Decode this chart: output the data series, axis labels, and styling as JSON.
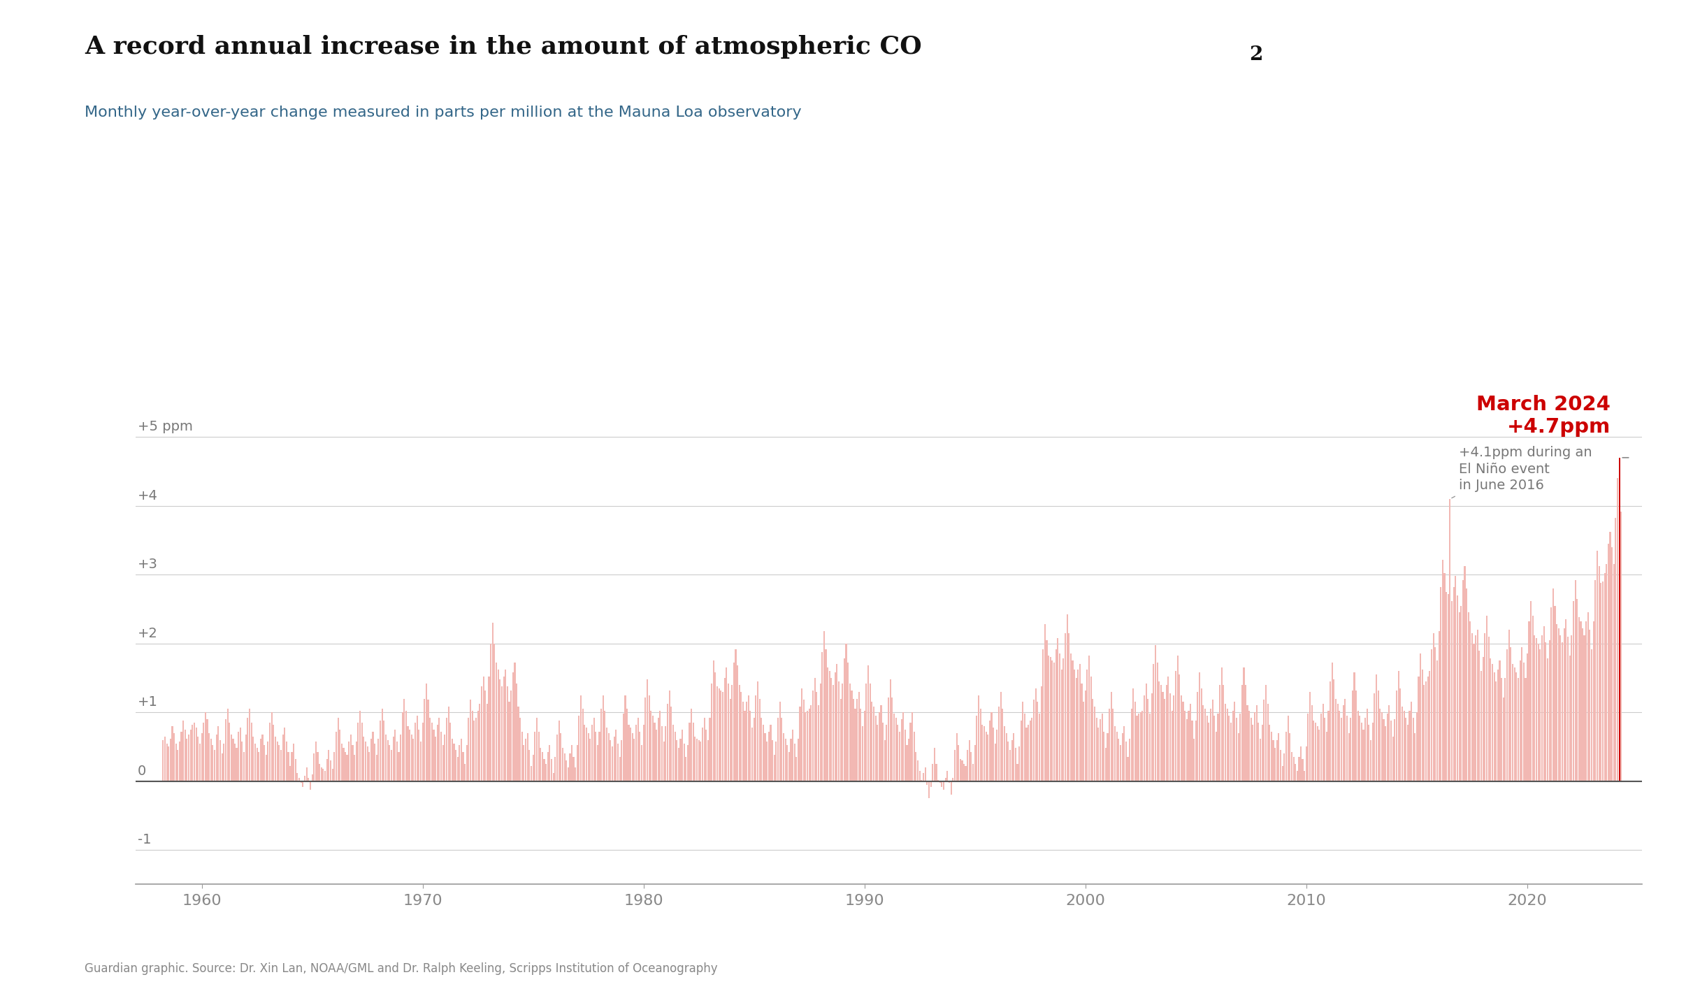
{
  "title_part1": "A record annual increase in the amount of atmospheric CO",
  "title_sub": "2",
  "subtitle": "Monthly year-over-year change measured in parts per million at the Mauna Loa observatory",
  "source": "Guardian graphic. Source: Dr. Xin Lan, NOAA/GML and Dr. Ralph Keeling, Scripps Institution of Oceanography",
  "bar_color": "#f2b8b3",
  "highlight_color": "#cc0000",
  "annotation_color": "#777777",
  "connector_color": "#999999",
  "title_color": "#111111",
  "subtitle_color": "#336688",
  "background_color": "#ffffff",
  "ylim": [
    -1.5,
    5.8
  ],
  "yticks": [
    -1,
    0,
    1,
    2,
    3,
    4,
    5
  ],
  "ytick_labels": [
    "-1",
    "0",
    "+1",
    "+2",
    "+3",
    "+4",
    "+5 ppm"
  ],
  "march2024_value": 4.7,
  "june2016_value": 4.1,
  "data": [
    1958.25,
    0.6,
    1958.33,
    0.65,
    1958.42,
    0.55,
    1958.5,
    0.5,
    1958.58,
    0.62,
    1958.67,
    0.8,
    1958.75,
    0.7,
    1958.83,
    0.55,
    1958.92,
    0.45,
    1959.0,
    0.58,
    1959.08,
    0.72,
    1959.17,
    0.88,
    1959.25,
    0.75,
    1959.33,
    0.62,
    1959.42,
    0.68,
    1959.5,
    0.75,
    1959.58,
    0.82,
    1959.67,
    0.85,
    1959.75,
    0.78,
    1959.83,
    0.65,
    1959.92,
    0.55,
    1960.0,
    0.7,
    1960.08,
    0.85,
    1960.17,
    1.0,
    1960.25,
    0.9,
    1960.33,
    0.7,
    1960.42,
    0.62,
    1960.5,
    0.52,
    1960.58,
    0.45,
    1960.67,
    0.68,
    1960.75,
    0.8,
    1960.83,
    0.6,
    1960.92,
    0.4,
    1961.0,
    0.55,
    1961.08,
    0.9,
    1961.17,
    1.05,
    1961.25,
    0.85,
    1961.33,
    0.68,
    1961.42,
    0.62,
    1961.5,
    0.55,
    1961.58,
    0.48,
    1961.67,
    0.72,
    1961.75,
    0.78,
    1961.83,
    0.58,
    1961.92,
    0.42,
    1962.0,
    0.68,
    1962.08,
    0.92,
    1962.17,
    1.05,
    1962.25,
    0.85,
    1962.33,
    0.65,
    1962.42,
    0.55,
    1962.5,
    0.48,
    1962.58,
    0.42,
    1962.67,
    0.62,
    1962.75,
    0.68,
    1962.83,
    0.52,
    1962.92,
    0.38,
    1963.0,
    0.58,
    1963.08,
    0.85,
    1963.17,
    1.0,
    1963.25,
    0.82,
    1963.33,
    0.65,
    1963.42,
    0.58,
    1963.5,
    0.52,
    1963.58,
    0.45,
    1963.67,
    0.68,
    1963.75,
    0.78,
    1963.83,
    0.58,
    1963.92,
    0.42,
    1964.0,
    0.22,
    1964.08,
    0.42,
    1964.17,
    0.55,
    1964.25,
    0.32,
    1964.33,
    0.12,
    1964.42,
    0.05,
    1964.5,
    -0.02,
    1964.58,
    -0.08,
    1964.67,
    0.08,
    1964.75,
    0.2,
    1964.83,
    0.05,
    1964.92,
    -0.12,
    1965.0,
    0.1,
    1965.08,
    0.4,
    1965.17,
    0.58,
    1965.25,
    0.42,
    1965.33,
    0.25,
    1965.42,
    0.2,
    1965.5,
    0.18,
    1965.58,
    0.15,
    1965.67,
    0.32,
    1965.75,
    0.45,
    1965.83,
    0.3,
    1965.92,
    0.18,
    1966.0,
    0.42,
    1966.08,
    0.72,
    1966.17,
    0.92,
    1966.25,
    0.75,
    1966.33,
    0.55,
    1966.42,
    0.48,
    1966.5,
    0.42,
    1966.58,
    0.38,
    1966.67,
    0.58,
    1966.75,
    0.68,
    1966.83,
    0.52,
    1966.92,
    0.38,
    1967.0,
    0.58,
    1967.08,
    0.85,
    1967.17,
    1.02,
    1967.25,
    0.85,
    1967.33,
    0.65,
    1967.42,
    0.58,
    1967.5,
    0.5,
    1967.58,
    0.42,
    1967.67,
    0.62,
    1967.75,
    0.72,
    1967.83,
    0.55,
    1967.92,
    0.38,
    1968.0,
    0.62,
    1968.08,
    0.88,
    1968.17,
    1.05,
    1968.25,
    0.88,
    1968.33,
    0.68,
    1968.42,
    0.6,
    1968.5,
    0.52,
    1968.58,
    0.45,
    1968.67,
    0.65,
    1968.75,
    0.75,
    1968.83,
    0.58,
    1968.92,
    0.42,
    1969.0,
    0.68,
    1969.08,
    1.0,
    1969.17,
    1.2,
    1969.25,
    1.02,
    1969.33,
    0.8,
    1969.42,
    0.75,
    1969.5,
    0.68,
    1969.58,
    0.62,
    1969.67,
    0.85,
    1969.75,
    0.95,
    1969.83,
    0.75,
    1969.92,
    0.58,
    1970.0,
    0.85,
    1970.08,
    1.2,
    1970.17,
    1.42,
    1970.25,
    1.18,
    1970.33,
    0.92,
    1970.42,
    0.85,
    1970.5,
    0.75,
    1970.58,
    0.65,
    1970.67,
    0.82,
    1970.75,
    0.92,
    1970.83,
    0.72,
    1970.92,
    0.52,
    1971.0,
    0.68,
    1971.08,
    0.92,
    1971.17,
    1.08,
    1971.25,
    0.85,
    1971.33,
    0.62,
    1971.42,
    0.55,
    1971.5,
    0.45,
    1971.58,
    0.35,
    1971.67,
    0.52,
    1971.75,
    0.62,
    1971.83,
    0.42,
    1971.92,
    0.25,
    1972.0,
    0.52,
    1972.08,
    0.92,
    1972.17,
    1.18,
    1972.25,
    1.02,
    1972.33,
    0.88,
    1972.42,
    0.92,
    1972.5,
    1.02,
    1972.58,
    1.12,
    1972.67,
    1.38,
    1972.75,
    1.52,
    1972.83,
    1.32,
    1972.92,
    1.12,
    1973.0,
    1.52,
    1973.08,
    2.0,
    1973.17,
    2.3,
    1973.25,
    2.0,
    1973.33,
    1.72,
    1973.42,
    1.62,
    1973.5,
    1.48,
    1973.58,
    1.38,
    1973.67,
    1.52,
    1973.75,
    1.62,
    1973.83,
    1.38,
    1973.92,
    1.15,
    1974.0,
    1.32,
    1974.08,
    1.58,
    1974.17,
    1.72,
    1974.25,
    1.42,
    1974.33,
    1.08,
    1974.42,
    0.92,
    1974.5,
    0.72,
    1974.58,
    0.52,
    1974.67,
    0.62,
    1974.75,
    0.7,
    1974.83,
    0.45,
    1974.92,
    0.22,
    1975.0,
    0.38,
    1975.08,
    0.72,
    1975.17,
    0.92,
    1975.25,
    0.72,
    1975.33,
    0.48,
    1975.42,
    0.42,
    1975.5,
    0.32,
    1975.58,
    0.25,
    1975.67,
    0.42,
    1975.75,
    0.52,
    1975.83,
    0.32,
    1975.92,
    0.12,
    1976.0,
    0.35,
    1976.08,
    0.68,
    1976.17,
    0.88,
    1976.25,
    0.7,
    1976.33,
    0.48,
    1976.42,
    0.4,
    1976.5,
    0.3,
    1976.58,
    0.2,
    1976.67,
    0.4,
    1976.75,
    0.52,
    1976.83,
    0.35,
    1976.92,
    0.2,
    1977.0,
    0.52,
    1977.08,
    0.95,
    1977.17,
    1.25,
    1977.25,
    1.05,
    1977.33,
    0.82,
    1977.42,
    0.78,
    1977.5,
    0.7,
    1977.58,
    0.62,
    1977.67,
    0.82,
    1977.75,
    0.92,
    1977.83,
    0.72,
    1977.92,
    0.52,
    1978.0,
    0.72,
    1978.08,
    1.05,
    1978.17,
    1.25,
    1978.25,
    1.02,
    1978.33,
    0.78,
    1978.42,
    0.7,
    1978.5,
    0.6,
    1978.58,
    0.5,
    1978.67,
    0.65,
    1978.75,
    0.75,
    1978.83,
    0.55,
    1978.92,
    0.35,
    1979.0,
    0.6,
    1979.08,
    0.98,
    1979.17,
    1.25,
    1979.25,
    1.05,
    1979.33,
    0.82,
    1979.42,
    0.78,
    1979.5,
    0.7,
    1979.58,
    0.62,
    1979.67,
    0.82,
    1979.75,
    0.92,
    1979.83,
    0.72,
    1979.92,
    0.52,
    1980.0,
    0.82,
    1980.08,
    1.22,
    1980.17,
    1.48,
    1980.25,
    1.25,
    1980.33,
    1.02,
    1980.42,
    0.95,
    1980.5,
    0.85,
    1980.58,
    0.75,
    1980.67,
    0.92,
    1980.75,
    1.02,
    1980.83,
    0.8,
    1980.92,
    0.58,
    1981.0,
    0.8,
    1981.08,
    1.12,
    1981.17,
    1.32,
    1981.25,
    1.08,
    1981.33,
    0.82,
    1981.42,
    0.72,
    1981.5,
    0.6,
    1981.58,
    0.48,
    1981.67,
    0.62,
    1981.75,
    0.75,
    1981.83,
    0.55,
    1981.92,
    0.35,
    1982.0,
    0.52,
    1982.08,
    0.85,
    1982.17,
    1.05,
    1982.25,
    0.85,
    1982.33,
    0.65,
    1982.42,
    0.62,
    1982.5,
    0.6,
    1982.58,
    0.58,
    1982.67,
    0.78,
    1982.75,
    0.92,
    1982.83,
    0.75,
    1982.92,
    0.6,
    1983.0,
    0.92,
    1983.08,
    1.42,
    1983.17,
    1.75,
    1983.25,
    1.58,
    1983.33,
    1.38,
    1983.42,
    1.35,
    1983.5,
    1.32,
    1983.58,
    1.3,
    1983.67,
    1.5,
    1983.75,
    1.65,
    1983.83,
    1.42,
    1983.92,
    1.2,
    1984.0,
    1.4,
    1984.08,
    1.72,
    1984.17,
    1.92,
    1984.25,
    1.68,
    1984.33,
    1.4,
    1984.42,
    1.3,
    1984.5,
    1.15,
    1984.58,
    1.02,
    1984.67,
    1.15,
    1984.75,
    1.25,
    1984.83,
    1.02,
    1984.92,
    0.78,
    1985.0,
    0.92,
    1985.08,
    1.25,
    1985.17,
    1.45,
    1985.25,
    1.2,
    1985.33,
    0.92,
    1985.42,
    0.82,
    1985.5,
    0.7,
    1985.58,
    0.58,
    1985.67,
    0.72,
    1985.75,
    0.82,
    1985.83,
    0.6,
    1985.92,
    0.38,
    1986.0,
    0.58,
    1986.08,
    0.92,
    1986.17,
    1.15,
    1986.25,
    0.92,
    1986.33,
    0.7,
    1986.42,
    0.62,
    1986.5,
    0.52,
    1986.58,
    0.42,
    1986.67,
    0.62,
    1986.75,
    0.75,
    1986.83,
    0.55,
    1986.92,
    0.35,
    1987.0,
    0.62,
    1987.08,
    1.08,
    1987.17,
    1.35,
    1987.25,
    1.18,
    1987.33,
    1.0,
    1987.42,
    1.02,
    1987.5,
    1.05,
    1987.58,
    1.1,
    1987.67,
    1.32,
    1987.75,
    1.5,
    1987.83,
    1.3,
    1987.92,
    1.1,
    1988.0,
    1.42,
    1988.08,
    1.88,
    1988.17,
    2.18,
    1988.25,
    1.92,
    1988.33,
    1.65,
    1988.42,
    1.6,
    1988.5,
    1.5,
    1988.58,
    1.4,
    1988.67,
    1.58,
    1988.75,
    1.7,
    1988.83,
    1.45,
    1988.92,
    1.2,
    1989.0,
    1.42,
    1989.08,
    1.78,
    1989.17,
    2.0,
    1989.25,
    1.72,
    1989.33,
    1.42,
    1989.42,
    1.32,
    1989.5,
    1.2,
    1989.58,
    1.05,
    1989.67,
    1.2,
    1989.75,
    1.3,
    1989.83,
    1.05,
    1989.92,
    0.8,
    1990.0,
    1.02,
    1990.08,
    1.42,
    1990.17,
    1.68,
    1990.25,
    1.42,
    1990.33,
    1.15,
    1990.42,
    1.08,
    1990.5,
    0.95,
    1990.58,
    0.82,
    1990.67,
    1.0,
    1990.75,
    1.1,
    1990.83,
    0.85,
    1990.92,
    0.6,
    1991.0,
    0.82,
    1991.08,
    1.22,
    1991.17,
    1.48,
    1991.25,
    1.22,
    1991.33,
    0.98,
    1991.42,
    0.92,
    1991.5,
    0.82,
    1991.58,
    0.72,
    1991.67,
    0.9,
    1991.75,
    1.0,
    1991.83,
    0.75,
    1991.92,
    0.52,
    1992.0,
    0.62,
    1992.08,
    0.85,
    1992.17,
    1.0,
    1992.25,
    0.72,
    1992.33,
    0.42,
    1992.42,
    0.3,
    1992.5,
    0.15,
    1992.58,
    0.02,
    1992.67,
    0.12,
    1992.75,
    0.2,
    1992.83,
    -0.05,
    1992.92,
    -0.25,
    1993.0,
    -0.08,
    1993.08,
    0.25,
    1993.17,
    0.48,
    1993.25,
    0.25,
    1993.33,
    0.02,
    1993.42,
    -0.02,
    1993.5,
    -0.08,
    1993.58,
    -0.12,
    1993.67,
    0.05,
    1993.75,
    0.15,
    1993.83,
    -0.02,
    1993.92,
    -0.2,
    1994.0,
    0.05,
    1994.08,
    0.45,
    1994.17,
    0.7,
    1994.25,
    0.52,
    1994.33,
    0.32,
    1994.42,
    0.3,
    1994.5,
    0.25,
    1994.58,
    0.22,
    1994.67,
    0.45,
    1994.75,
    0.6,
    1994.83,
    0.42,
    1994.92,
    0.25,
    1995.0,
    0.52,
    1995.08,
    0.95,
    1995.17,
    1.25,
    1995.25,
    1.05,
    1995.33,
    0.82,
    1995.42,
    0.8,
    1995.5,
    0.72,
    1995.58,
    0.68,
    1995.67,
    0.88,
    1995.75,
    1.0,
    1995.83,
    0.78,
    1995.92,
    0.55,
    1996.0,
    0.75,
    1996.08,
    1.08,
    1996.17,
    1.3,
    1996.25,
    1.05,
    1996.33,
    0.8,
    1996.42,
    0.7,
    1996.5,
    0.58,
    1996.58,
    0.45,
    1996.67,
    0.6,
    1996.75,
    0.7,
    1996.83,
    0.48,
    1996.92,
    0.25,
    1997.0,
    0.5,
    1997.08,
    0.88,
    1997.17,
    1.15,
    1997.25,
    0.98,
    1997.33,
    0.78,
    1997.42,
    0.82,
    1997.5,
    0.88,
    1997.58,
    0.92,
    1997.67,
    1.18,
    1997.75,
    1.35,
    1997.83,
    1.15,
    1997.92,
    0.98,
    1998.0,
    1.38,
    1998.08,
    1.92,
    1998.17,
    2.28,
    1998.25,
    2.05,
    1998.33,
    1.82,
    1998.42,
    1.8,
    1998.5,
    1.75,
    1998.58,
    1.72,
    1998.67,
    1.92,
    1998.75,
    2.08,
    1998.83,
    1.85,
    1998.92,
    1.62,
    1999.0,
    1.78,
    1999.08,
    2.15,
    1999.17,
    2.42,
    1999.25,
    2.15,
    1999.33,
    1.85,
    1999.42,
    1.75,
    1999.5,
    1.62,
    1999.58,
    1.5,
    1999.67,
    1.62,
    1999.75,
    1.7,
    1999.83,
    1.42,
    1999.92,
    1.15,
    2000.0,
    1.32,
    2000.08,
    1.62,
    2000.17,
    1.82,
    2000.25,
    1.52,
    2000.33,
    1.2,
    2000.42,
    1.08,
    2000.5,
    0.92,
    2000.58,
    0.78,
    2000.67,
    0.9,
    2000.75,
    0.98,
    2000.83,
    0.72,
    2000.92,
    0.48,
    2001.0,
    0.7,
    2001.08,
    1.05,
    2001.17,
    1.3,
    2001.25,
    1.05,
    2001.33,
    0.8,
    2001.42,
    0.72,
    2001.5,
    0.62,
    2001.58,
    0.52,
    2001.67,
    0.7,
    2001.75,
    0.8,
    2001.83,
    0.58,
    2001.92,
    0.35,
    2002.0,
    0.62,
    2002.08,
    1.05,
    2002.17,
    1.35,
    2002.25,
    1.15,
    2002.33,
    0.95,
    2002.42,
    0.98,
    2002.5,
    1.0,
    2002.58,
    1.02,
    2002.67,
    1.25,
    2002.75,
    1.42,
    2002.83,
    1.2,
    2002.92,
    0.98,
    2003.0,
    1.28,
    2003.08,
    1.7,
    2003.17,
    1.98,
    2003.25,
    1.72,
    2003.33,
    1.45,
    2003.42,
    1.4,
    2003.5,
    1.3,
    2003.58,
    1.2,
    2003.67,
    1.4,
    2003.75,
    1.52,
    2003.83,
    1.28,
    2003.92,
    1.02,
    2004.0,
    1.25,
    2004.08,
    1.6,
    2004.17,
    1.82,
    2004.25,
    1.55,
    2004.33,
    1.25,
    2004.42,
    1.15,
    2004.5,
    1.02,
    2004.58,
    0.9,
    2004.67,
    1.02,
    2004.75,
    1.12,
    2004.83,
    0.88,
    2004.92,
    0.62,
    2005.0,
    0.88,
    2005.08,
    1.3,
    2005.17,
    1.58,
    2005.25,
    1.35,
    2005.33,
    1.1,
    2005.42,
    1.05,
    2005.5,
    0.95,
    2005.58,
    0.85,
    2005.67,
    1.05,
    2005.75,
    1.18,
    2005.83,
    0.95,
    2005.92,
    0.72,
    2006.0,
    0.98,
    2006.08,
    1.4,
    2006.17,
    1.65,
    2006.25,
    1.4,
    2006.33,
    1.12,
    2006.42,
    1.05,
    2006.5,
    0.95,
    2006.58,
    0.85,
    2006.67,
    1.02,
    2006.75,
    1.15,
    2006.83,
    0.92,
    2006.92,
    0.7,
    2007.0,
    0.98,
    2007.08,
    1.4,
    2007.17,
    1.65,
    2007.25,
    1.4,
    2007.33,
    1.1,
    2007.42,
    1.02,
    2007.5,
    0.92,
    2007.58,
    0.82,
    2007.67,
    1.0,
    2007.75,
    1.1,
    2007.83,
    0.85,
    2007.92,
    0.62,
    2008.0,
    0.82,
    2008.08,
    1.18,
    2008.17,
    1.4,
    2008.25,
    1.12,
    2008.33,
    0.82,
    2008.42,
    0.72,
    2008.5,
    0.6,
    2008.58,
    0.48,
    2008.67,
    0.6,
    2008.75,
    0.7,
    2008.83,
    0.45,
    2008.92,
    0.22,
    2009.0,
    0.4,
    2009.08,
    0.72,
    2009.17,
    0.95,
    2009.25,
    0.7,
    2009.33,
    0.42,
    2009.42,
    0.35,
    2009.5,
    0.25,
    2009.58,
    0.15,
    2009.67,
    0.35,
    2009.75,
    0.5,
    2009.83,
    0.32,
    2009.92,
    0.15,
    2010.0,
    0.5,
    2010.08,
    0.98,
    2010.17,
    1.3,
    2010.25,
    1.1,
    2010.33,
    0.88,
    2010.42,
    0.85,
    2010.5,
    0.8,
    2010.58,
    0.75,
    2010.67,
    0.98,
    2010.75,
    1.12,
    2010.83,
    0.92,
    2010.92,
    0.72,
    2011.0,
    1.02,
    2011.08,
    1.45,
    2011.17,
    1.72,
    2011.25,
    1.48,
    2011.33,
    1.2,
    2011.42,
    1.12,
    2011.5,
    1.02,
    2011.58,
    0.92,
    2011.67,
    1.1,
    2011.75,
    1.2,
    2011.83,
    0.95,
    2011.92,
    0.7,
    2012.0,
    0.92,
    2012.08,
    1.32,
    2012.17,
    1.58,
    2012.25,
    1.32,
    2012.33,
    1.02,
    2012.42,
    0.95,
    2012.5,
    0.85,
    2012.58,
    0.75,
    2012.67,
    0.92,
    2012.75,
    1.05,
    2012.83,
    0.82,
    2012.92,
    0.6,
    2013.0,
    0.85,
    2013.08,
    1.28,
    2013.17,
    1.55,
    2013.25,
    1.32,
    2013.33,
    1.05,
    2013.42,
    1.0,
    2013.5,
    0.9,
    2013.58,
    0.8,
    2013.67,
    0.98,
    2013.75,
    1.1,
    2013.83,
    0.88,
    2013.92,
    0.65,
    2014.0,
    0.9,
    2014.08,
    1.32,
    2014.17,
    1.6,
    2014.25,
    1.35,
    2014.33,
    1.08,
    2014.42,
    1.02,
    2014.5,
    0.92,
    2014.58,
    0.82,
    2014.67,
    1.02,
    2014.75,
    1.15,
    2014.83,
    0.92,
    2014.92,
    0.7,
    2015.0,
    1.0,
    2015.08,
    1.52,
    2015.17,
    1.85,
    2015.25,
    1.62,
    2015.33,
    1.4,
    2015.42,
    1.45,
    2015.5,
    1.52,
    2015.58,
    1.6,
    2015.67,
    1.92,
    2015.75,
    2.15,
    2015.83,
    1.95,
    2015.92,
    1.75,
    2016.0,
    2.18,
    2016.08,
    2.82,
    2016.17,
    3.22,
    2016.25,
    3.02,
    2016.33,
    2.75,
    2016.42,
    2.72,
    2016.5,
    4.1,
    2016.58,
    2.62,
    2016.67,
    2.82,
    2016.75,
    2.98,
    2016.83,
    2.7,
    2016.92,
    2.45,
    2017.0,
    2.55,
    2017.08,
    2.92,
    2017.17,
    3.12,
    2017.25,
    2.8,
    2017.33,
    2.45,
    2017.42,
    2.32,
    2017.5,
    2.15,
    2017.58,
    2.0,
    2017.67,
    2.12,
    2017.75,
    2.2,
    2017.83,
    1.9,
    2017.92,
    1.6,
    2018.0,
    1.8,
    2018.08,
    2.15,
    2018.17,
    2.4,
    2018.25,
    2.1,
    2018.33,
    1.78,
    2018.42,
    1.7,
    2018.5,
    1.58,
    2018.58,
    1.45,
    2018.67,
    1.62,
    2018.75,
    1.75,
    2018.83,
    1.5,
    2018.92,
    1.22,
    2019.0,
    1.5,
    2019.08,
    1.92,
    2019.17,
    2.2,
    2019.25,
    1.95,
    2019.33,
    1.7,
    2019.42,
    1.65,
    2019.5,
    1.58,
    2019.58,
    1.5,
    2019.67,
    1.75,
    2019.75,
    1.95,
    2019.83,
    1.72,
    2019.92,
    1.5,
    2020.0,
    1.85,
    2020.08,
    2.32,
    2020.17,
    2.62,
    2020.25,
    2.4,
    2020.33,
    2.12,
    2020.42,
    2.08,
    2020.5,
    2.0,
    2020.58,
    1.92,
    2020.67,
    2.12,
    2020.75,
    2.25,
    2020.83,
    2.02,
    2020.92,
    1.78,
    2021.0,
    2.05,
    2021.08,
    2.52,
    2021.17,
    2.8,
    2021.25,
    2.55,
    2021.33,
    2.28,
    2021.42,
    2.22,
    2021.5,
    2.12,
    2021.58,
    2.02,
    2021.67,
    2.22,
    2021.75,
    2.35,
    2021.83,
    2.1,
    2021.92,
    1.82,
    2022.0,
    2.12,
    2022.08,
    2.62,
    2022.17,
    2.92,
    2022.25,
    2.65,
    2022.33,
    2.38,
    2022.42,
    2.32,
    2022.5,
    2.22,
    2022.58,
    2.12,
    2022.67,
    2.32,
    2022.75,
    2.45,
    2022.83,
    2.2,
    2022.92,
    1.92,
    2023.0,
    2.32,
    2023.08,
    2.92,
    2023.17,
    3.35,
    2023.25,
    3.12,
    2023.33,
    2.88,
    2023.42,
    2.9,
    2023.5,
    3.02,
    2023.58,
    3.15,
    2023.67,
    3.45,
    2023.75,
    3.62,
    2023.83,
    3.4,
    2023.92,
    3.15,
    2024.0,
    3.82,
    2024.08,
    4.4,
    2024.17,
    4.7,
    2024.25,
    3.92
  ]
}
